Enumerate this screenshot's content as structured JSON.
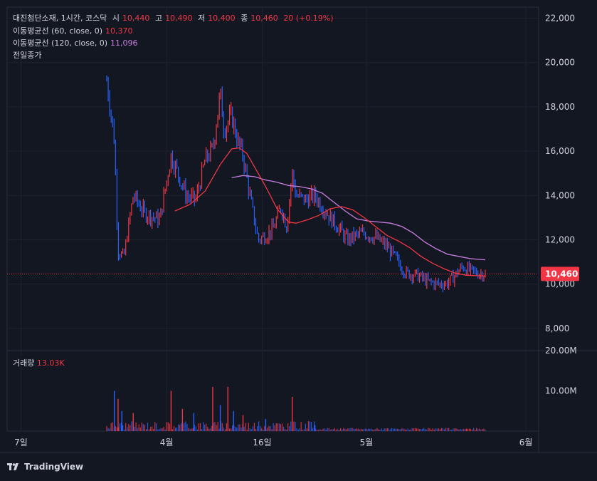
{
  "header": {
    "symbol": "대진첨단소재, 1시간, 코스닥",
    "open_label": "시",
    "open": "10,440",
    "high_label": "고",
    "high": "10,490",
    "low_label": "저",
    "low": "10,400",
    "close_label": "종",
    "close": "10,460",
    "change": "20 (+0.19%)"
  },
  "indicators": [
    {
      "label": "이동평균선 (60, close, 0)",
      "value": "10,370",
      "color": "#f23645"
    },
    {
      "label": "이동평균선 (120, close, 0)",
      "value": "11,096",
      "color": "#c77dde"
    },
    {
      "label": "전일종가",
      "value": "",
      "color": "#d1d4dc"
    }
  ],
  "volume": {
    "label": "거래량",
    "value": "13.03K"
  },
  "price_tag": "10,460",
  "brand": "TradingView",
  "colors": {
    "up": "#f23645",
    "down": "#2962ff",
    "ma60": "#f23645",
    "ma120": "#c77dde",
    "bg": "#131722"
  },
  "chart_data": {
    "type": "line",
    "title": "",
    "ylim": [
      7000,
      22500
    ],
    "y_ticks": [
      "22,000",
      "20,000",
      "18,000",
      "16,000",
      "14,000",
      "12,000",
      "10,000",
      "8,000"
    ],
    "y_tick_values": [
      22000,
      20000,
      18000,
      16000,
      14000,
      12000,
      10000,
      8000
    ],
    "x_labels": [
      "7일",
      "4월",
      "16일",
      "5월",
      "6월"
    ],
    "x_label_positions": [
      0.026,
      0.3,
      0.48,
      0.676,
      0.976
    ],
    "price": {
      "name": "대진첨단소재",
      "x": [
        0,
        0.02,
        0.03,
        0.045,
        0.07,
        0.1,
        0.14,
        0.17,
        0.21,
        0.235,
        0.26,
        0.28,
        0.3,
        0.31,
        0.33,
        0.345,
        0.36,
        0.38,
        0.4,
        0.42,
        0.44,
        0.46,
        0.475,
        0.49,
        0.5,
        0.525,
        0.55,
        0.57,
        0.59,
        0.61,
        0.635,
        0.66,
        0.68,
        0.71,
        0.74,
        0.77,
        0.79,
        0.82,
        0.85,
        0.88,
        0.9,
        0.92,
        0.94,
        0.96,
        0.98,
        1.0
      ],
      "values": [
        19200,
        16500,
        11500,
        11200,
        14000,
        13200,
        12900,
        15800,
        14000,
        13800,
        15600,
        16100,
        18600,
        17000,
        17600,
        16500,
        15800,
        13800,
        12000,
        12200,
        12500,
        13500,
        12600,
        15000,
        14000,
        13800,
        14000,
        13500,
        13000,
        12600,
        12000,
        12200,
        12300,
        12100,
        11700,
        11000,
        10500,
        10400,
        10100,
        10000,
        10050,
        10400,
        10800,
        10600,
        10500,
        10460
      ]
    },
    "ma60": {
      "name": "이동평균선 (60, close, 0)",
      "x": [
        0.18,
        0.22,
        0.26,
        0.3,
        0.33,
        0.35,
        0.37,
        0.39,
        0.42,
        0.45,
        0.48,
        0.5,
        0.53,
        0.56,
        0.59,
        0.62,
        0.65,
        0.68,
        0.71,
        0.74,
        0.77,
        0.8,
        0.83,
        0.86,
        0.89,
        0.92,
        0.95,
        0.98,
        1.0
      ],
      "values": [
        13300,
        13600,
        14200,
        15400,
        16100,
        16150,
        15900,
        15300,
        14400,
        13400,
        12800,
        12750,
        12900,
        13100,
        13400,
        13500,
        13350,
        13000,
        12600,
        12200,
        11950,
        11650,
        11250,
        10950,
        10700,
        10500,
        10400,
        10380,
        10370
      ]
    },
    "ma120": {
      "name": "이동평균선 (120, close, 0)",
      "x": [
        0.33,
        0.36,
        0.39,
        0.42,
        0.45,
        0.48,
        0.51,
        0.54,
        0.57,
        0.6,
        0.63,
        0.66,
        0.69,
        0.72,
        0.75,
        0.78,
        0.81,
        0.84,
        0.87,
        0.9,
        0.93,
        0.96,
        0.98,
        1.0
      ],
      "values": [
        14800,
        14900,
        14850,
        14700,
        14600,
        14450,
        14400,
        14300,
        14100,
        13700,
        13300,
        12950,
        12850,
        12800,
        12750,
        12600,
        12300,
        11900,
        11600,
        11350,
        11250,
        11150,
        11120,
        11096
      ]
    },
    "previous_close": 10460,
    "volume": {
      "ylim": [
        0,
        20000000
      ],
      "y_ticks": [
        "20.00M",
        "10.00M"
      ],
      "y_tick_values": [
        20000000,
        10000000
      ],
      "spikes": [
        {
          "x": 0.02,
          "value": 10000000,
          "up": false
        },
        {
          "x": 0.03,
          "value": 8000000,
          "up": true
        },
        {
          "x": 0.04,
          "value": 5000000,
          "up": false
        },
        {
          "x": 0.07,
          "value": 4500000,
          "up": true
        },
        {
          "x": 0.17,
          "value": 10000000,
          "up": true
        },
        {
          "x": 0.2,
          "value": 5500000,
          "up": true
        },
        {
          "x": 0.23,
          "value": 4500000,
          "up": false
        },
        {
          "x": 0.28,
          "value": 11000000,
          "up": true
        },
        {
          "x": 0.3,
          "value": 6500000,
          "up": false
        },
        {
          "x": 0.32,
          "value": 11000000,
          "up": true
        },
        {
          "x": 0.335,
          "value": 5000000,
          "up": false
        },
        {
          "x": 0.36,
          "value": 4000000,
          "up": true
        },
        {
          "x": 0.42,
          "value": 3000000,
          "up": false
        },
        {
          "x": 0.49,
          "value": 8500000,
          "up": true
        },
        {
          "x": 0.55,
          "value": 1500000,
          "up": false
        },
        {
          "x": 0.95,
          "value": 500000,
          "up": true
        }
      ]
    }
  }
}
